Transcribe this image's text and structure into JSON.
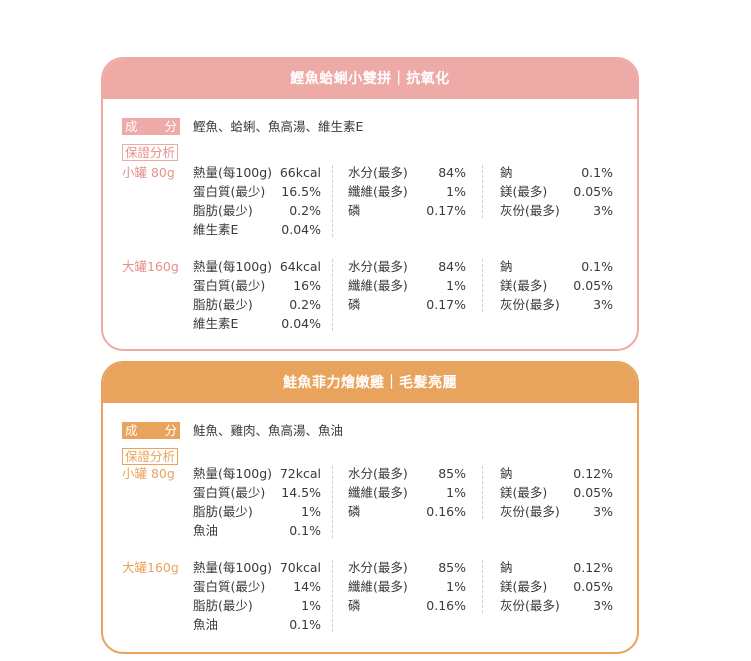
{
  "products": [
    {
      "title": "鰹魚蛤蜊小雙拼｜抗氧化",
      "ingredient_tag": [
        "成",
        "分"
      ],
      "ingredients": "鰹魚、蛤蜊、魚高湯、維生素E",
      "analysis_tag": "保證分析",
      "sizes": [
        {
          "label": "小罐 80g",
          "col1": [
            [
              "熱量(每100g)",
              "66kcal"
            ],
            [
              "蛋白質(最少)",
              "16.5%"
            ],
            [
              "脂肪(最少)",
              "0.2%"
            ],
            [
              "維生素E",
              "0.04%"
            ]
          ],
          "col2": [
            [
              "水分(最多)",
              "84%"
            ],
            [
              "纖維(最多)",
              "1%"
            ],
            [
              "磷",
              "0.17%"
            ]
          ],
          "col3": [
            [
              "鈉",
              "0.1%"
            ],
            [
              "鎂(最多)",
              "0.05%"
            ],
            [
              "灰份(最多)",
              "3%"
            ]
          ]
        },
        {
          "label": "大罐160g",
          "col1": [
            [
              "熱量(每100g)",
              "64kcal"
            ],
            [
              "蛋白質(最少)",
              "16%"
            ],
            [
              "脂肪(最少)",
              "0.2%"
            ],
            [
              "維生素E",
              "0.04%"
            ]
          ],
          "col2": [
            [
              "水分(最多)",
              "84%"
            ],
            [
              "纖維(最多)",
              "1%"
            ],
            [
              "磷",
              "0.17%"
            ]
          ],
          "col3": [
            [
              "鈉",
              "0.1%"
            ],
            [
              "鎂(最多)",
              "0.05%"
            ],
            [
              "灰份(最多)",
              "3%"
            ]
          ]
        }
      ]
    },
    {
      "title": "鮭魚菲力燴嫩雞｜毛髮亮麗",
      "ingredient_tag": [
        "成",
        "分"
      ],
      "ingredients": "鮭魚、雞肉、魚高湯、魚油",
      "analysis_tag": "保證分析",
      "sizes": [
        {
          "label": "小罐 80g",
          "col1": [
            [
              "熱量(每100g)",
              "72kcal"
            ],
            [
              "蛋白質(最少)",
              "14.5%"
            ],
            [
              "脂肪(最少)",
              "1%"
            ],
            [
              "魚油",
              "0.1%"
            ]
          ],
          "col2": [
            [
              "水分(最多)",
              "85%"
            ],
            [
              "纖維(最多)",
              "1%"
            ],
            [
              "磷",
              "0.16%"
            ]
          ],
          "col3": [
            [
              "鈉",
              "0.12%"
            ],
            [
              "鎂(最多)",
              "0.05%"
            ],
            [
              "灰份(最多)",
              "3%"
            ]
          ]
        },
        {
          "label": "大罐160g",
          "col1": [
            [
              "熱量(每100g)",
              "70kcal"
            ],
            [
              "蛋白質(最少)",
              "14%"
            ],
            [
              "脂肪(最少)",
              "1%"
            ],
            [
              "魚油",
              "0.1%"
            ]
          ],
          "col2": [
            [
              "水分(最多)",
              "85%"
            ],
            [
              "纖維(最多)",
              "1%"
            ],
            [
              "磷",
              "0.16%"
            ]
          ],
          "col3": [
            [
              "鈉",
              "0.12%"
            ],
            [
              "鎂(最多)",
              "0.05%"
            ],
            [
              "灰份(最多)",
              "3%"
            ]
          ]
        }
      ]
    }
  ]
}
